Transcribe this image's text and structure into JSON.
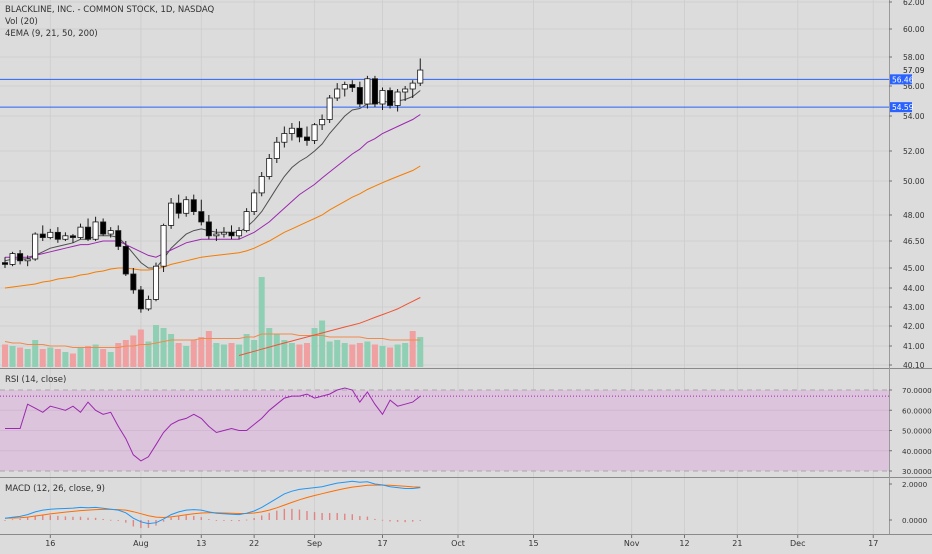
{
  "chart_data": [
    {
      "type": "candlestick",
      "title": "BLACKLINE, INC. - COMMON STOCK, 1D, NASDAQ",
      "volume_label": "Vol (20)",
      "ema_label": "4EMA (9, 21, 50, 200)",
      "price_axis_ticks": [
        "62.00",
        "60.00",
        "58.00",
        "56.00",
        "54.00",
        "52.00",
        "50.00",
        "48.00",
        "46.50",
        "45.00",
        "44.00",
        "43.00",
        "42.00",
        "41.00",
        "40.10"
      ],
      "horizontal_lines": [
        {
          "label": "56.46",
          "value": 56.46,
          "color": "#2962ff"
        },
        {
          "label": "54.59",
          "value": 54.59,
          "color": "#2962ff"
        }
      ],
      "last_price": {
        "label": "57.09",
        "value": 57.09
      },
      "candles": [
        [
          45.3,
          45.6,
          45.0,
          45.2
        ],
        [
          45.2,
          45.9,
          45.1,
          45.8
        ],
        [
          45.8,
          46.0,
          45.2,
          45.4
        ],
        [
          45.4,
          45.7,
          45.1,
          45.5
        ],
        [
          45.5,
          47.0,
          45.4,
          46.9
        ],
        [
          46.9,
          47.4,
          46.5,
          46.7
        ],
        [
          46.7,
          47.2,
          46.6,
          47.0
        ],
        [
          47.0,
          47.3,
          46.4,
          46.6
        ],
        [
          46.6,
          47.0,
          46.5,
          46.8
        ],
        [
          46.8,
          46.9,
          46.4,
          46.7
        ],
        [
          46.7,
          47.5,
          46.6,
          47.3
        ],
        [
          47.3,
          47.8,
          46.5,
          46.6
        ],
        [
          46.6,
          47.9,
          46.5,
          47.6
        ],
        [
          47.6,
          47.8,
          46.8,
          46.9
        ],
        [
          46.9,
          47.3,
          46.7,
          47.1
        ],
        [
          47.1,
          47.4,
          46.0,
          46.2
        ],
        [
          46.2,
          46.5,
          44.6,
          44.7
        ],
        [
          44.7,
          45.0,
          43.7,
          43.9
        ],
        [
          43.9,
          44.1,
          42.7,
          42.9
        ],
        [
          42.9,
          43.6,
          42.8,
          43.4
        ],
        [
          43.4,
          45.3,
          43.3,
          45.1
        ],
        [
          45.1,
          47.5,
          44.8,
          47.4
        ],
        [
          47.4,
          49.0,
          47.2,
          48.7
        ],
        [
          48.7,
          49.2,
          47.8,
          48.1
        ],
        [
          48.1,
          49.1,
          47.9,
          48.9
        ],
        [
          48.9,
          49.2,
          48.0,
          48.2
        ],
        [
          48.2,
          48.9,
          47.4,
          47.6
        ],
        [
          47.6,
          48.0,
          46.6,
          46.8
        ],
        [
          46.8,
          47.2,
          46.5,
          46.9
        ],
        [
          46.9,
          47.3,
          46.7,
          47.0
        ],
        [
          47.0,
          47.4,
          46.6,
          46.8
        ],
        [
          46.8,
          47.3,
          46.6,
          47.1
        ],
        [
          47.1,
          48.4,
          47.0,
          48.2
        ],
        [
          48.2,
          49.5,
          48.0,
          49.3
        ],
        [
          49.3,
          50.6,
          49.1,
          50.3
        ],
        [
          50.3,
          51.8,
          50.1,
          51.5
        ],
        [
          51.5,
          52.8,
          51.2,
          52.5
        ],
        [
          52.5,
          53.4,
          52.2,
          53.0
        ],
        [
          53.0,
          53.6,
          52.6,
          53.3
        ],
        [
          53.3,
          53.7,
          52.5,
          52.8
        ],
        [
          52.8,
          53.4,
          52.3,
          52.6
        ],
        [
          52.6,
          53.6,
          52.4,
          53.5
        ],
        [
          53.5,
          54.1,
          53.2,
          53.8
        ],
        [
          53.8,
          55.4,
          53.6,
          55.2
        ],
        [
          55.2,
          56.2,
          55.0,
          55.8
        ],
        [
          55.8,
          56.3,
          55.3,
          56.1
        ],
        [
          56.1,
          56.4,
          55.6,
          55.9
        ],
        [
          55.9,
          56.3,
          54.6,
          54.8
        ],
        [
          54.8,
          56.7,
          54.5,
          56.5
        ],
        [
          56.5,
          56.7,
          54.6,
          54.8
        ],
        [
          54.8,
          55.9,
          54.4,
          55.7
        ],
        [
          55.7,
          55.9,
          54.5,
          54.7
        ],
        [
          54.7,
          55.8,
          54.3,
          55.6
        ],
        [
          55.6,
          56.0,
          55.0,
          55.8
        ],
        [
          55.8,
          56.4,
          55.2,
          56.2
        ],
        [
          56.2,
          57.9,
          56.0,
          57.1
        ]
      ],
      "volume": [
        {
          "v": 1.5,
          "up": false
        },
        {
          "v": 1.4,
          "up": true
        },
        {
          "v": 1.3,
          "up": false
        },
        {
          "v": 1.2,
          "up": true
        },
        {
          "v": 1.8,
          "up": true
        },
        {
          "v": 1.2,
          "up": false
        },
        {
          "v": 1.3,
          "up": true
        },
        {
          "v": 1.2,
          "up": false
        },
        {
          "v": 1.0,
          "up": true
        },
        {
          "v": 0.9,
          "up": false
        },
        {
          "v": 1.3,
          "up": true
        },
        {
          "v": 1.4,
          "up": false
        },
        {
          "v": 1.5,
          "up": true
        },
        {
          "v": 1.2,
          "up": false
        },
        {
          "v": 1.0,
          "up": true
        },
        {
          "v": 1.6,
          "up": false
        },
        {
          "v": 1.8,
          "up": false
        },
        {
          "v": 2.1,
          "up": false
        },
        {
          "v": 2.5,
          "up": false
        },
        {
          "v": 1.7,
          "up": true
        },
        {
          "v": 2.8,
          "up": true
        },
        {
          "v": 2.6,
          "up": true
        },
        {
          "v": 2.2,
          "up": true
        },
        {
          "v": 1.6,
          "up": false
        },
        {
          "v": 1.4,
          "up": true
        },
        {
          "v": 1.8,
          "up": false
        },
        {
          "v": 2.0,
          "up": false
        },
        {
          "v": 2.4,
          "up": false
        },
        {
          "v": 1.6,
          "up": true
        },
        {
          "v": 1.5,
          "up": true
        },
        {
          "v": 1.6,
          "up": false
        },
        {
          "v": 1.5,
          "up": true
        },
        {
          "v": 2.2,
          "up": true
        },
        {
          "v": 1.8,
          "up": true
        },
        {
          "v": 6.0,
          "up": true
        },
        {
          "v": 2.6,
          "up": true
        },
        {
          "v": 2.2,
          "up": true
        },
        {
          "v": 1.8,
          "up": true
        },
        {
          "v": 1.6,
          "up": true
        },
        {
          "v": 1.5,
          "up": false
        },
        {
          "v": 1.6,
          "up": false
        },
        {
          "v": 2.6,
          "up": true
        },
        {
          "v": 3.1,
          "up": true
        },
        {
          "v": 1.7,
          "up": true
        },
        {
          "v": 1.8,
          "up": true
        },
        {
          "v": 1.6,
          "up": true
        },
        {
          "v": 1.5,
          "up": false
        },
        {
          "v": 1.6,
          "up": false
        },
        {
          "v": 1.7,
          "up": true
        },
        {
          "v": 1.5,
          "up": false
        },
        {
          "v": 1.4,
          "up": true
        },
        {
          "v": 1.3,
          "up": false
        },
        {
          "v": 1.5,
          "up": true
        },
        {
          "v": 1.6,
          "up": true
        },
        {
          "v": 2.4,
          "up": false
        },
        {
          "v": 2.0,
          "up": true
        }
      ],
      "volume_avg": [
        1.7,
        1.6,
        1.6,
        1.5,
        1.5,
        1.5,
        1.4,
        1.4,
        1.4,
        1.3,
        1.3,
        1.3,
        1.3,
        1.3,
        1.3,
        1.3,
        1.4,
        1.4,
        1.5,
        1.5,
        1.6,
        1.7,
        1.8,
        1.8,
        1.8,
        1.8,
        1.9,
        1.9,
        1.9,
        1.9,
        1.9,
        1.9,
        2.0,
        2.0,
        2.2,
        2.2,
        2.2,
        2.2,
        2.2,
        2.1,
        2.1,
        2.1,
        2.1,
        2.0,
        2.0,
        2.0,
        2.0,
        2.0,
        1.9,
        1.9,
        1.9,
        1.8,
        1.8,
        1.8,
        1.8,
        1.8
      ],
      "volume_avg_color": "#ef8a4b",
      "ema": [
        {
          "name": "9",
          "color": "#505050",
          "values": [
            45.4,
            45.5,
            45.5,
            45.5,
            45.7,
            45.9,
            46.1,
            46.2,
            46.3,
            46.4,
            46.6,
            46.6,
            46.8,
            46.8,
            46.8,
            46.7,
            46.3,
            45.8,
            45.3,
            45.0,
            45.0,
            45.5,
            46.1,
            46.5,
            46.9,
            47.1,
            47.2,
            47.1,
            47.0,
            47.0,
            47.0,
            47.0,
            47.3,
            47.7,
            48.2,
            48.9,
            49.6,
            50.3,
            50.9,
            51.3,
            51.6,
            52.0,
            52.4,
            53.0,
            53.5,
            54.0,
            54.4,
            54.5,
            54.8,
            54.8,
            55.0,
            54.9,
            55.0,
            55.1,
            55.3,
            55.7
          ]
        },
        {
          "name": "21",
          "color": "#9c27b0",
          "values": [
            45.6,
            45.6,
            45.6,
            45.6,
            45.7,
            45.8,
            45.9,
            46.0,
            46.1,
            46.2,
            46.3,
            46.3,
            46.4,
            46.5,
            46.5,
            46.5,
            46.3,
            46.1,
            45.9,
            45.7,
            45.6,
            45.8,
            46.0,
            46.2,
            46.4,
            46.5,
            46.6,
            46.6,
            46.6,
            46.6,
            46.6,
            46.6,
            46.8,
            47.0,
            47.3,
            47.6,
            48.0,
            48.4,
            48.8,
            49.2,
            49.5,
            49.8,
            50.2,
            50.6,
            51.0,
            51.4,
            51.8,
            52.1,
            52.5,
            52.7,
            53.0,
            53.2,
            53.4,
            53.6,
            53.8,
            54.1
          ]
        },
        {
          "name": "50",
          "color": "#f57c00",
          "values": [
            44.0,
            44.05,
            44.1,
            44.15,
            44.2,
            44.3,
            44.35,
            44.45,
            44.5,
            44.55,
            44.65,
            44.7,
            44.8,
            44.85,
            44.95,
            45.0,
            45.0,
            44.95,
            44.9,
            44.9,
            44.95,
            45.05,
            45.2,
            45.3,
            45.4,
            45.5,
            45.6,
            45.65,
            45.7,
            45.75,
            45.8,
            45.85,
            45.95,
            46.1,
            46.3,
            46.5,
            46.75,
            47.0,
            47.2,
            47.4,
            47.6,
            47.8,
            48.0,
            48.3,
            48.55,
            48.8,
            49.05,
            49.25,
            49.5,
            49.7,
            49.9,
            50.1,
            50.3,
            50.5,
            50.7,
            51.0
          ]
        },
        {
          "name": "200",
          "color": "#ef5334",
          "values": [
            null,
            null,
            null,
            null,
            null,
            null,
            null,
            null,
            null,
            null,
            null,
            null,
            null,
            null,
            null,
            null,
            null,
            null,
            null,
            null,
            null,
            null,
            null,
            null,
            null,
            null,
            null,
            null,
            null,
            null,
            null,
            40.55,
            40.65,
            40.75,
            40.85,
            40.95,
            41.05,
            41.15,
            41.25,
            41.35,
            41.45,
            41.55,
            41.65,
            41.75,
            41.85,
            41.95,
            42.05,
            42.15,
            42.3,
            42.45,
            42.6,
            42.75,
            42.9,
            43.1,
            43.3,
            43.5
          ]
        }
      ],
      "x_tick_labels": [
        "16",
        "Aug",
        "13",
        "22",
        "Sep",
        "17",
        "Oct",
        "15",
        "Nov",
        "12",
        "21",
        "Dec",
        "17"
      ]
    },
    {
      "type": "line",
      "title": "RSI (14, close)",
      "y_ticks": [
        "70.0000",
        "60.0000",
        "50.0000",
        "40.0000",
        "30.0000"
      ],
      "ylim": [
        30,
        70
      ],
      "overbought": 70,
      "oversold": 30,
      "current_value": 67,
      "values": [
        51,
        51,
        51,
        63,
        61,
        59,
        62,
        61,
        60,
        62,
        59,
        64,
        60,
        58,
        59,
        52,
        46,
        38,
        35,
        37,
        43,
        49,
        53,
        55,
        56,
        58,
        56,
        52,
        49,
        50,
        51,
        50,
        50,
        53,
        56,
        60,
        63,
        66,
        67,
        67,
        68,
        66,
        67,
        68,
        70,
        71,
        70,
        64,
        69,
        63,
        58,
        65,
        62,
        63,
        64,
        67
      ],
      "color": "#9c27b0"
    },
    {
      "type": "line",
      "title": "MACD (12, 26, close, 9)",
      "y_ticks": [
        "2.0000",
        "0.0000"
      ],
      "macd_color": "#2196f3",
      "signal_color": "#ff6d00",
      "macd": [
        0.1,
        0.15,
        0.2,
        0.3,
        0.45,
        0.55,
        0.6,
        0.62,
        0.64,
        0.66,
        0.7,
        0.68,
        0.7,
        0.65,
        0.6,
        0.55,
        0.4,
        0.1,
        -0.1,
        -0.2,
        -0.15,
        0.05,
        0.3,
        0.45,
        0.55,
        0.58,
        0.55,
        0.45,
        0.38,
        0.35,
        0.32,
        0.3,
        0.38,
        0.5,
        0.7,
        0.95,
        1.2,
        1.45,
        1.6,
        1.7,
        1.75,
        1.8,
        1.85,
        1.95,
        2.05,
        2.1,
        2.15,
        2.1,
        2.12,
        2.0,
        1.95,
        1.85,
        1.8,
        1.75,
        1.75,
        1.8
      ],
      "signal": [
        0.1,
        0.11,
        0.13,
        0.16,
        0.22,
        0.28,
        0.34,
        0.39,
        0.44,
        0.48,
        0.52,
        0.55,
        0.58,
        0.59,
        0.59,
        0.58,
        0.55,
        0.46,
        0.35,
        0.24,
        0.16,
        0.14,
        0.17,
        0.23,
        0.29,
        0.35,
        0.39,
        0.4,
        0.4,
        0.39,
        0.37,
        0.36,
        0.36,
        0.39,
        0.45,
        0.55,
        0.68,
        0.83,
        0.98,
        1.12,
        1.25,
        1.36,
        1.46,
        1.56,
        1.66,
        1.75,
        1.83,
        1.88,
        1.93,
        1.94,
        1.94,
        1.93,
        1.9,
        1.87,
        1.84,
        1.83
      ]
    }
  ]
}
